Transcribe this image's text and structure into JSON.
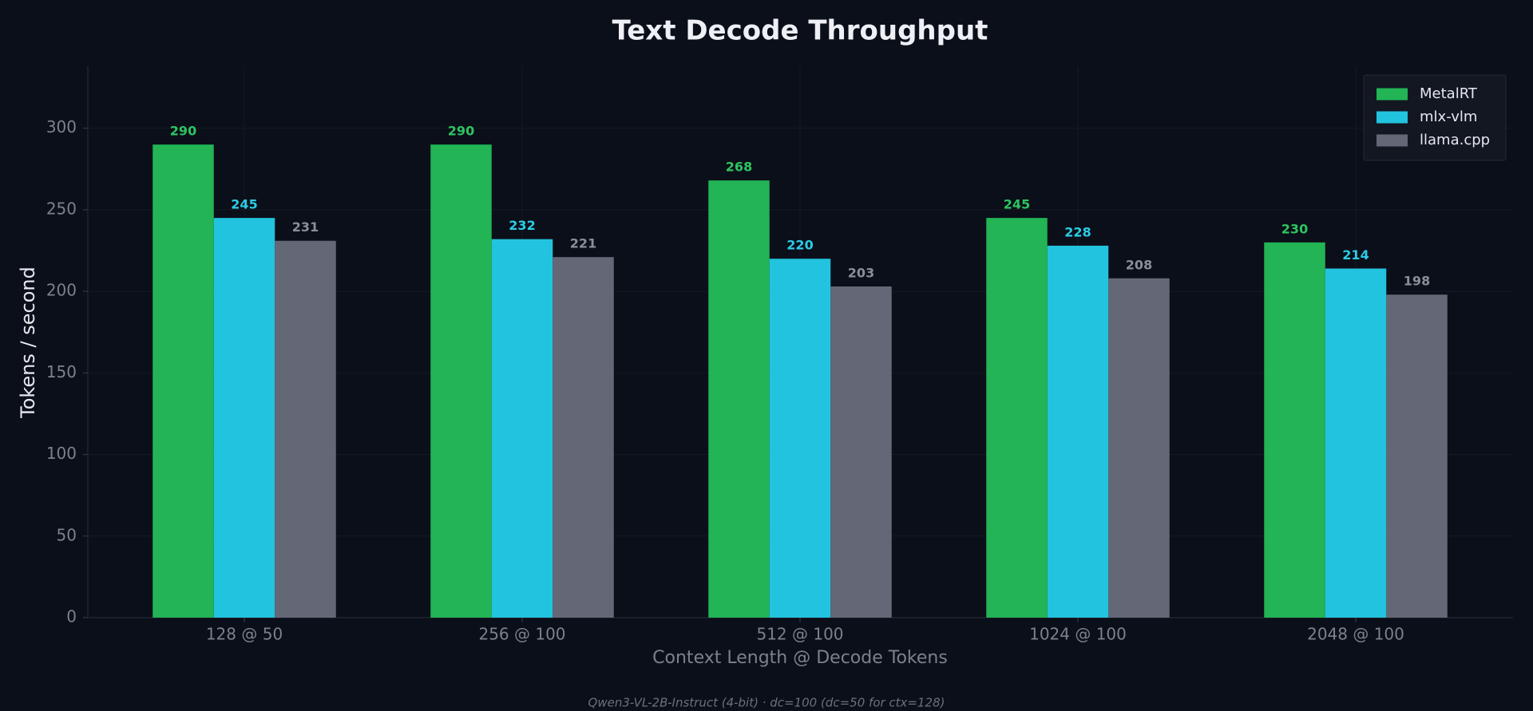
{
  "chart_data": {
    "type": "bar",
    "title": "Text Decode Throughput",
    "x_label": "Context Length @ Decode Tokens",
    "y_label": "Tokens / second",
    "footnote": "Qwen3-VL-2B-Instruct (4-bit) · dc=100 (dc=50 for ctx=128)",
    "categories": [
      "128 @ 50",
      "256 @ 100",
      "512 @ 100",
      "1024 @ 100",
      "2048 @ 100"
    ],
    "series": [
      {
        "name": "MetalRT",
        "color": "#22b455",
        "label_color": "#2ec460",
        "values": [
          290,
          290,
          268,
          245,
          230
        ]
      },
      {
        "name": "mlx-vlm",
        "color": "#22c3de",
        "label_color": "#2ccde6",
        "values": [
          245,
          232,
          220,
          228,
          214
        ]
      },
      {
        "name": "llama.cpp",
        "color": "#646876",
        "label_color": "#8a8e99",
        "values": [
          231,
          221,
          203,
          208,
          198
        ]
      }
    ],
    "ylim": [
      0,
      338
    ],
    "yticks": [
      0,
      50,
      100,
      150,
      200,
      250,
      300
    ],
    "grid": true,
    "legend": "upper right"
  }
}
